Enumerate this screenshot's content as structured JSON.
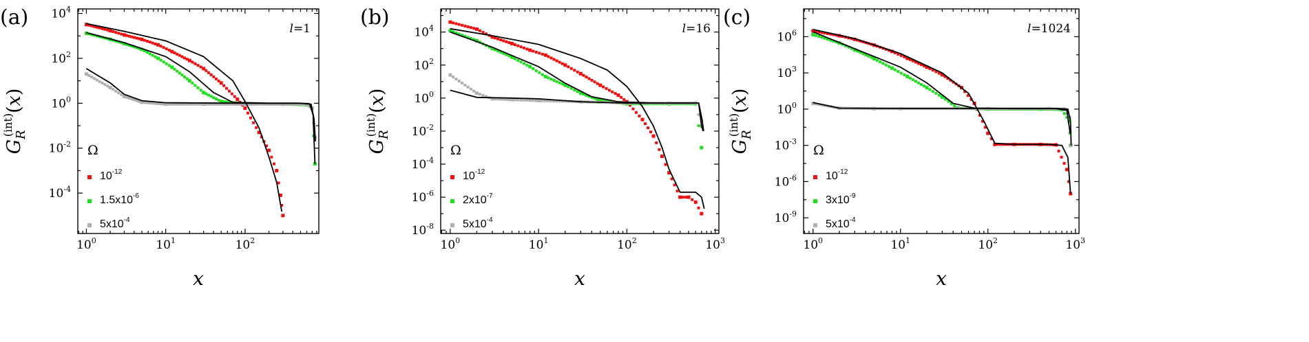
{
  "chart_data": [
    {
      "type": "scatter",
      "panel_label": "(a)",
      "annotation": "l=1",
      "ylabel": "G_R^(int)(x)",
      "xlabel": "x",
      "xscale": "log",
      "yscale": "log",
      "xlim": [
        0.78,
        850
      ],
      "ylim_log10": [
        -5.8,
        4.2
      ],
      "x_ticks": [
        "10^0",
        "10^1",
        "10^2"
      ],
      "y_ticks": [
        "10^-4",
        "10^-2",
        "10^0",
        "10^2",
        "10^4"
      ],
      "legend_title": "Ω",
      "series": [
        {
          "name": "10^-12",
          "color": "#ee1111",
          "points": [
            [
              1,
              3200.0
            ],
            [
              2,
              1700.0
            ],
            [
              3,
              1100.0
            ],
            [
              5,
              700
            ],
            [
              8,
              400
            ],
            [
              12,
              200
            ],
            [
              20,
              80
            ],
            [
              30,
              35
            ],
            [
              50,
              8
            ],
            [
              80,
              1.5
            ],
            [
              100,
              0.6
            ],
            [
              150,
              0.05
            ],
            [
              200,
              0.008
            ],
            [
              250,
              0.001
            ],
            [
              280,
              8e-05
            ],
            [
              300,
              1e-05
            ]
          ]
        },
        {
          "name": "1.5x10^-6",
          "color": "#22dd22",
          "points": [
            [
              1,
              1300.0
            ],
            [
              2,
              700
            ],
            [
              3,
              450
            ],
            [
              5,
              250
            ],
            [
              8,
              100
            ],
            [
              12,
              40
            ],
            [
              20,
              10
            ],
            [
              30,
              3
            ],
            [
              50,
              1.2
            ],
            [
              100,
              0.95
            ],
            [
              300,
              0.9
            ],
            [
              600,
              0.85
            ],
            [
              700,
              0.6
            ],
            [
              760,
              0.002
            ]
          ]
        },
        {
          "name": "5x10^-4",
          "color": "#b0b0b0",
          "points": [
            [
              1,
              20
            ],
            [
              2,
              5
            ],
            [
              3,
              2
            ],
            [
              5,
              1.1
            ],
            [
              10,
              0.9
            ],
            [
              30,
              0.9
            ],
            [
              100,
              0.9
            ],
            [
              300,
              0.9
            ],
            [
              600,
              0.9
            ],
            [
              700,
              0.6
            ],
            [
              760,
              0.03
            ]
          ]
        }
      ],
      "fits": [
        [
          [
            1,
            3500.0
          ],
          [
            3,
            1600.0
          ],
          [
            10,
            600
          ],
          [
            30,
            120
          ],
          [
            70,
            10
          ],
          [
            100,
            1.2
          ],
          [
            150,
            0.08
          ],
          [
            200,
            0.004
          ],
          [
            250,
            0.0003
          ],
          [
            290,
            1.5e-05
          ]
        ],
        [
          [
            1,
            1400.0
          ],
          [
            3,
            500
          ],
          [
            10,
            120
          ],
          [
            20,
            25
          ],
          [
            40,
            3
          ],
          [
            70,
            1.1
          ],
          [
            200,
            1.0
          ],
          [
            500,
            1.0
          ],
          [
            650,
            0.95
          ],
          [
            720,
            0.3
          ],
          [
            760,
            0.002
          ]
        ],
        [
          [
            1,
            35
          ],
          [
            2,
            8
          ],
          [
            3,
            2.5
          ],
          [
            5,
            1.3
          ],
          [
            10,
            1.05
          ],
          [
            100,
            1.0
          ],
          [
            500,
            1.0
          ],
          [
            680,
            0.9
          ],
          [
            740,
            0.2
          ],
          [
            770,
            0.02
          ]
        ]
      ]
    },
    {
      "type": "scatter",
      "panel_label": "(b)",
      "annotation": "l=16",
      "ylabel": "G_R^(int)(x)",
      "xlabel": "x",
      "xscale": "log",
      "yscale": "log",
      "xlim": [
        0.78,
        1100
      ],
      "ylim_log10": [
        -8.2,
        5.4
      ],
      "x_ticks": [
        "10^0",
        "10^1",
        "10^2",
        "10^3"
      ],
      "y_ticks": [
        "10^-8",
        "10^-6",
        "10^-4",
        "10^-2",
        "10^0",
        "10^2",
        "10^4"
      ],
      "legend_title": "Ω",
      "series": [
        {
          "name": "10^-12",
          "color": "#ee1111",
          "points": [
            [
              1,
              40000.0
            ],
            [
              2,
              15000.0
            ],
            [
              3,
              5000.0
            ],
            [
              5,
              2000.0
            ],
            [
              8,
              800
            ],
            [
              12,
              400
            ],
            [
              20,
              100
            ],
            [
              30,
              30
            ],
            [
              50,
              6
            ],
            [
              80,
              1.5
            ],
            [
              100,
              0.6
            ],
            [
              150,
              0.05
            ],
            [
              200,
              0.005
            ],
            [
              250,
              0.0003
            ],
            [
              300,
              3e-05
            ],
            [
              400,
              1e-06
            ],
            [
              500,
              1e-06
            ],
            [
              600,
              5e-07
            ],
            [
              700,
              1e-07
            ]
          ]
        },
        {
          "name": "2x10^-7",
          "color": "#22dd22",
          "points": [
            [
              1,
              12000.0
            ],
            [
              2,
              3000.0
            ],
            [
              3,
              1000.0
            ],
            [
              5,
              300
            ],
            [
              8,
              80
            ],
            [
              12,
              20
            ],
            [
              20,
              6
            ],
            [
              30,
              2
            ],
            [
              50,
              0.7
            ],
            [
              100,
              0.45
            ],
            [
              300,
              0.45
            ],
            [
              600,
              0.45
            ],
            [
              700,
              0.001
            ]
          ]
        },
        {
          "name": "5x10^-4",
          "color": "#b0b0b0",
          "points": [
            [
              1,
              25
            ],
            [
              2,
              2
            ],
            [
              3,
              0.9
            ],
            [
              5,
              0.8
            ],
            [
              10,
              0.7
            ],
            [
              30,
              0.6
            ],
            [
              100,
              0.5
            ],
            [
              300,
              0.5
            ],
            [
              600,
              0.5
            ],
            [
              700,
              0.02
            ]
          ]
        }
      ],
      "fits": [
        [
          [
            1,
            16000.0
          ],
          [
            3,
            6000.0
          ],
          [
            10,
            1800.0
          ],
          [
            30,
            250
          ],
          [
            60,
            50
          ],
          [
            100,
            5
          ],
          [
            150,
            0.3
          ],
          [
            200,
            0.02
          ],
          [
            250,
            0.001
          ],
          [
            300,
            5e-05
          ],
          [
            400,
            2e-06
          ],
          [
            600,
            2e-06
          ],
          [
            700,
            1e-06
          ],
          [
            750,
            2e-07
          ]
        ],
        [
          [
            1,
            10000.0
          ],
          [
            3,
            1200.0
          ],
          [
            10,
            80
          ],
          [
            20,
            8
          ],
          [
            40,
            1.2
          ],
          [
            80,
            0.6
          ],
          [
            200,
            0.5
          ],
          [
            500,
            0.5
          ],
          [
            650,
            0.5
          ],
          [
            700,
            0.02
          ],
          [
            730,
            0.01
          ]
        ],
        [
          [
            1,
            3
          ],
          [
            2,
            1.1
          ],
          [
            5,
            1.0
          ],
          [
            10,
            0.9
          ],
          [
            30,
            0.6
          ],
          [
            100,
            0.5
          ],
          [
            500,
            0.5
          ],
          [
            650,
            0.5
          ],
          [
            710,
            0.05
          ],
          [
            740,
            0.01
          ]
        ]
      ]
    },
    {
      "type": "scatter",
      "panel_label": "(c)",
      "annotation": "l=1024",
      "ylabel": "G_R^(int)(x)",
      "xlabel": "x",
      "xscale": "log",
      "yscale": "log",
      "xlim": [
        0.78,
        1100
      ],
      "ylim_log10": [
        -10.3,
        8.3
      ],
      "x_ticks": [
        "10^0",
        "10^1",
        "10^2",
        "10^3"
      ],
      "y_ticks": [
        "10^-9",
        "10^-6",
        "10^-3",
        "10^0",
        "10^3",
        "10^6"
      ],
      "legend_title": "Ω",
      "series": [
        {
          "name": "10^-12",
          "color": "#ee1111",
          "points": [
            [
              1,
              3000000.0
            ],
            [
              2,
              1200000.0
            ],
            [
              3,
              600000.0
            ],
            [
              5,
              200000.0
            ],
            [
              8,
              60000.0
            ],
            [
              12,
              16000.0
            ],
            [
              20,
              3000.0
            ],
            [
              30,
              700
            ],
            [
              50,
              60
            ],
            [
              70,
              3
            ],
            [
              100,
              0.01
            ],
            [
              120,
              0.0012
            ],
            [
              200,
              0.0012
            ],
            [
              400,
              0.0012
            ],
            [
              600,
              0.0011
            ],
            [
              800,
              1e-05
            ],
            [
              880,
              1e-07
            ]
          ]
        },
        {
          "name": "3x10^-9",
          "color": "#22dd22",
          "points": [
            [
              1,
              1500000.0
            ],
            [
              2,
              300000.0
            ],
            [
              3,
              80000.0
            ],
            [
              5,
              15000.0
            ],
            [
              8,
              2500.0
            ],
            [
              12,
              500
            ],
            [
              20,
              60
            ],
            [
              30,
              10
            ],
            [
              45,
              1.2
            ],
            [
              100,
              1.0
            ],
            [
              400,
              1.0
            ],
            [
              700,
              0.9
            ],
            [
              850,
              0.1
            ],
            [
              880,
              0.001
            ]
          ]
        },
        {
          "name": "5x10^-4",
          "color": "#b0b0b0",
          "points": [
            [
              1,
              3
            ],
            [
              2,
              1.2
            ],
            [
              5,
              1.1
            ],
            [
              10,
              1.1
            ],
            [
              100,
              1.1
            ],
            [
              500,
              1.1
            ],
            [
              750,
              1.0
            ],
            [
              860,
              0.2
            ],
            [
              890,
              0.001
            ]
          ]
        }
      ],
      "fits": [
        [
          [
            1,
            4000000.0
          ],
          [
            3,
            700000.0
          ],
          [
            10,
            40000.0
          ],
          [
            30,
            1000.0
          ],
          [
            60,
            20
          ],
          [
            90,
            0.1
          ],
          [
            120,
            0.0015
          ],
          [
            200,
            0.0012
          ],
          [
            500,
            0.0012
          ],
          [
            700,
            0.001
          ],
          [
            820,
            0.0001
          ],
          [
            880,
            1e-07
          ]
        ],
        [
          [
            1,
            2500000.0
          ],
          [
            3,
            100000.0
          ],
          [
            10,
            3000.0
          ],
          [
            20,
            150
          ],
          [
            40,
            3
          ],
          [
            70,
            1.2
          ],
          [
            200,
            1.1
          ],
          [
            600,
            1.1
          ],
          [
            800,
            0.8
          ],
          [
            870,
            0.01
          ]
        ],
        [
          [
            1,
            3.5
          ],
          [
            2,
            1.2
          ],
          [
            10,
            1.15
          ],
          [
            100,
            1.15
          ],
          [
            600,
            1.15
          ],
          [
            820,
            1.0
          ],
          [
            880,
            0.1
          ],
          [
            895,
            0.001
          ]
        ]
      ]
    }
  ]
}
